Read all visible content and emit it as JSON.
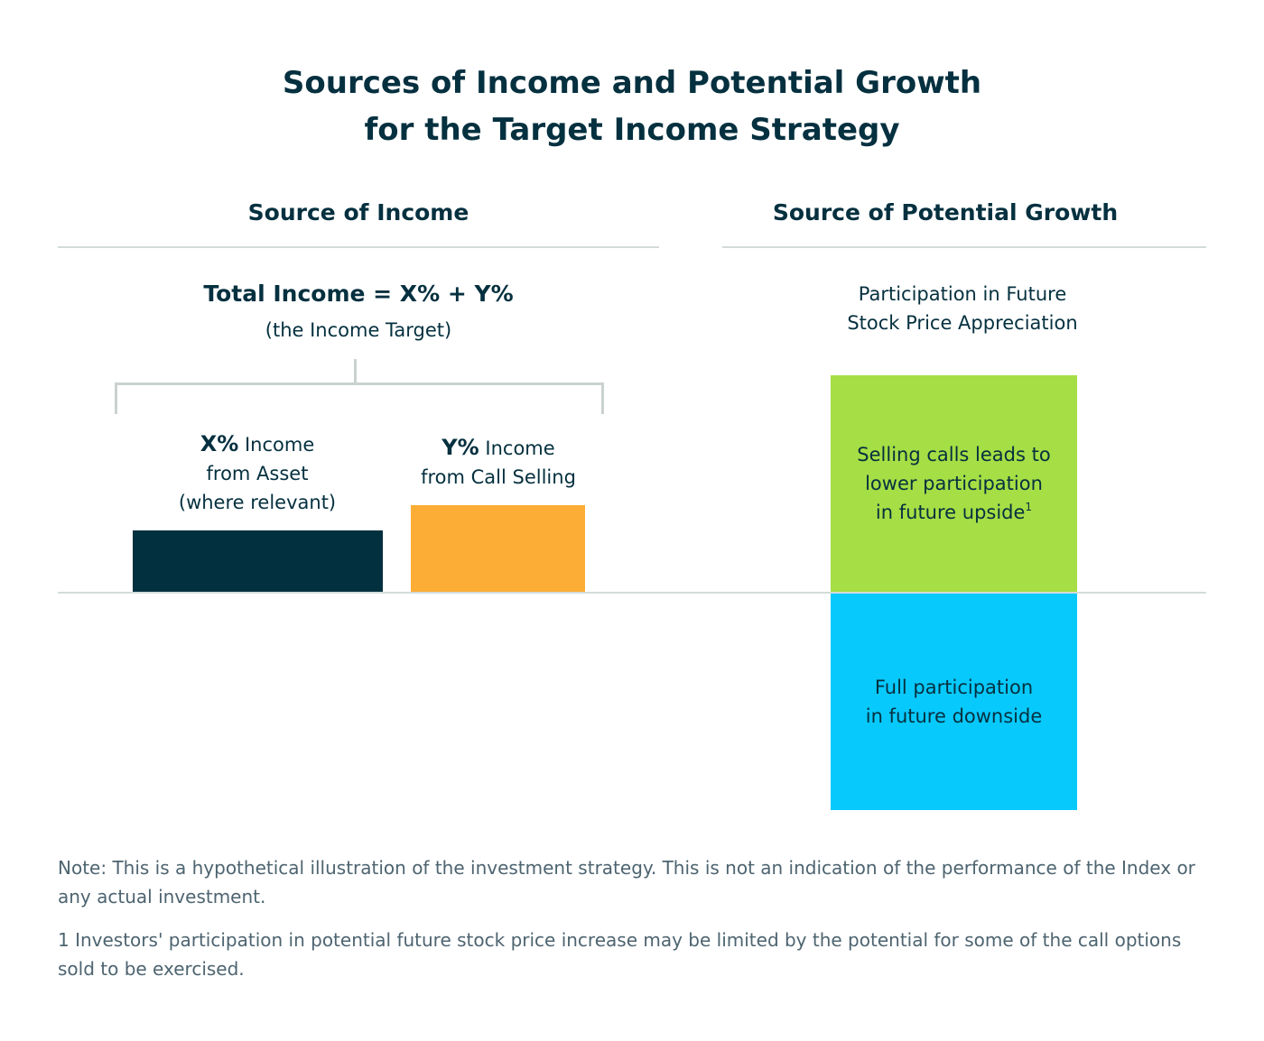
{
  "title": {
    "line1": "Sources of Income and Potential Growth",
    "line2": "for the Target Income Strategy"
  },
  "income": {
    "heading": "Source of Income",
    "formula": "Total Income = X% + Y%",
    "formula_sub": "(the Income Target)",
    "asset": {
      "pct": "X%",
      "label_1": " Income",
      "label_2": "from Asset",
      "label_3": "(where relevant)",
      "color": "#03303f"
    },
    "calls": {
      "pct": "Y%",
      "label_1": " Income",
      "label_2": "from Call Selling",
      "color": "#fcad35"
    }
  },
  "growth": {
    "heading": "Source of Potential Growth",
    "sub_1": "Participation in Future",
    "sub_2": "Stock Price Appreciation",
    "upside": {
      "line1": "Selling calls leads to",
      "line2": "lower participation",
      "line3": "in future upside",
      "footnote_ref": "1",
      "color": "#a6de45"
    },
    "downside": {
      "line1": "Full participation",
      "line2": "in future downside",
      "color": "#08c9fc"
    }
  },
  "notes": {
    "note": "Note: This is a hypothetical illustration of the investment strategy. This is not an indication of the performance of the Index or any actual investment.",
    "footnote": "1 Investors' participation in potential future stock price increase may be limited by the potential for some of the call options sold to be exercised."
  },
  "colors": {
    "text": "#05303f",
    "rule": "#d4dcda",
    "note_text": "#4d6470"
  }
}
